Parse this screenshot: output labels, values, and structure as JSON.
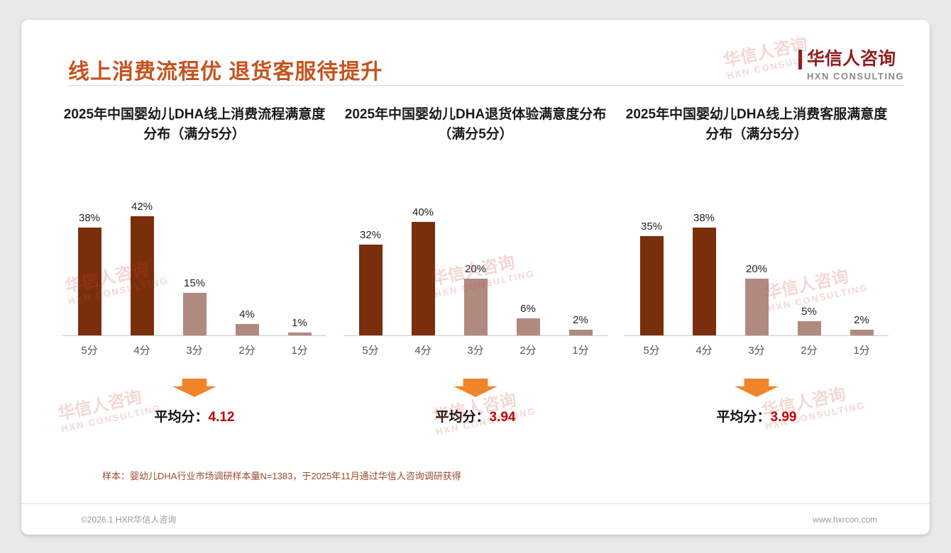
{
  "page": {
    "title": "线上消费流程优 退货客服待提升",
    "logo": {
      "cn": "华信人咨询",
      "en": "HXN CONSULTING"
    },
    "watermark": {
      "cn": "华信人咨询",
      "en": "HXN CONSULTING"
    },
    "footnote": "样本：婴幼儿DHA行业市场调研样本量N=1383，于2025年11月通过华信人咨询调研获得",
    "footer_left": "©2026.1 HXR华信人咨询",
    "footer_right": "www.hxrcon.com"
  },
  "colors": {
    "bar_dark": "#7a2f0c",
    "bar_light": "#b18a7f",
    "arrow": "#f08428",
    "average_value": "#c00000"
  },
  "chart_data": [
    {
      "type": "bar",
      "title": "2025年中国婴幼儿DHA线上消费流程满意度分布（满分5分）",
      "categories": [
        "5分",
        "4分",
        "3分",
        "2分",
        "1分"
      ],
      "values": [
        38,
        42,
        15,
        4,
        1
      ],
      "value_labels": [
        "38%",
        "42%",
        "15%",
        "4%",
        "1%"
      ],
      "ylim": [
        0,
        45
      ],
      "average_label": "平均分：",
      "average": "4.12"
    },
    {
      "type": "bar",
      "title": "2025年中国婴幼儿DHA退货体验满意度分布（满分5分）",
      "categories": [
        "5分",
        "4分",
        "3分",
        "2分",
        "1分"
      ],
      "values": [
        32,
        40,
        20,
        6,
        2
      ],
      "value_labels": [
        "32%",
        "40%",
        "20%",
        "6%",
        "2%"
      ],
      "ylim": [
        0,
        45
      ],
      "average_label": "平均分：",
      "average": "3.94"
    },
    {
      "type": "bar",
      "title": "2025年中国婴幼儿DHA线上消费客服满意度分布（满分5分）",
      "categories": [
        "5分",
        "4分",
        "3分",
        "2分",
        "1分"
      ],
      "values": [
        35,
        38,
        20,
        5,
        2
      ],
      "value_labels": [
        "35%",
        "38%",
        "20%",
        "5%",
        "2%"
      ],
      "ylim": [
        0,
        45
      ],
      "average_label": "平均分：",
      "average": "3.99"
    }
  ]
}
